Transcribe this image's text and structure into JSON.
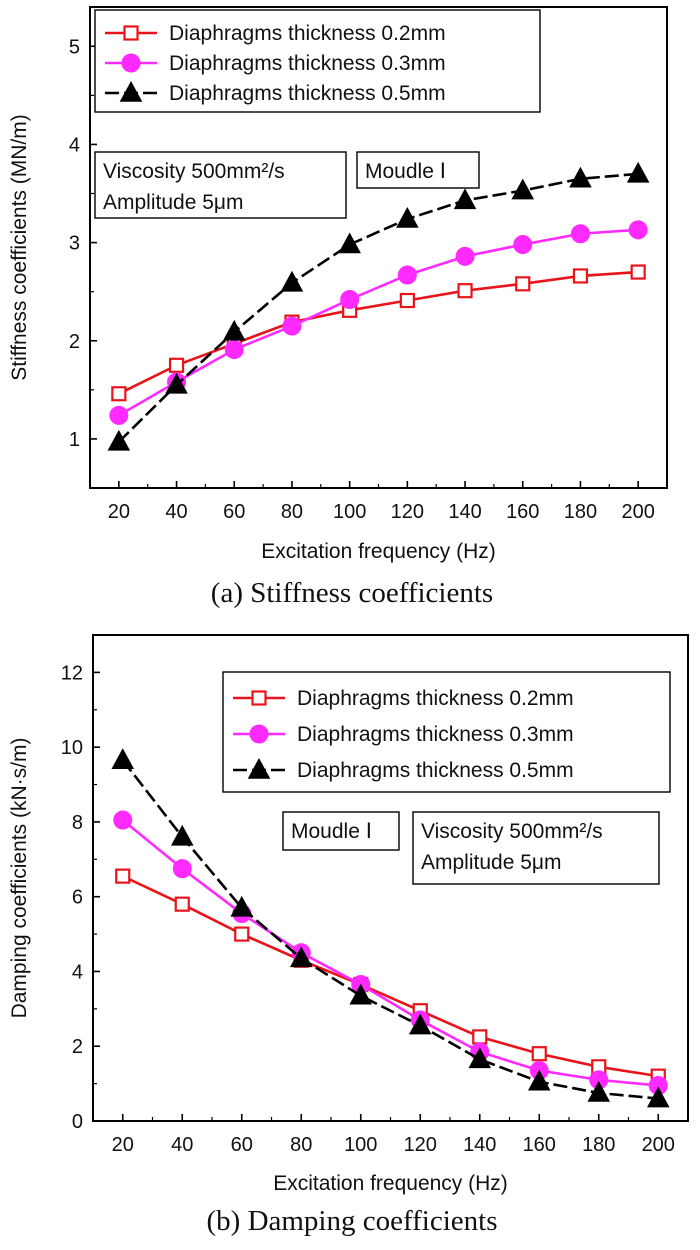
{
  "chart_data": [
    {
      "type": "line",
      "caption": "(a) Stiffness coefficients",
      "xlabel": "Excitation frequency (Hz)",
      "ylabel": "Stiffness coefficients (MN/m)",
      "xlim": [
        10,
        210
      ],
      "ylim": [
        0.5,
        5.4
      ],
      "xticks": [
        20,
        40,
        60,
        80,
        100,
        120,
        140,
        160,
        180,
        200
      ],
      "yticks": [
        1,
        2,
        3,
        4,
        5
      ],
      "grid": false,
      "legend_position": "top-left",
      "x": [
        20,
        40,
        60,
        80,
        100,
        120,
        140,
        160,
        180,
        200
      ],
      "series": [
        {
          "name": "Diaphragms thickness 0.2mm",
          "color": "#e8141b",
          "marker": "square-open",
          "dash": "solid",
          "values": [
            1.46,
            1.75,
            1.97,
            2.19,
            2.31,
            2.41,
            2.51,
            2.58,
            2.66,
            2.7
          ]
        },
        {
          "name": "Diaphragms thickness 0.3mm",
          "color": "#ff2aff",
          "marker": "circle",
          "dash": "solid",
          "values": [
            1.24,
            1.58,
            1.91,
            2.15,
            2.42,
            2.67,
            2.86,
            2.98,
            3.09,
            3.13
          ]
        },
        {
          "name": "Diaphragms thickness 0.5mm",
          "color": "#000000",
          "marker": "triangle",
          "dash": "dashed",
          "values": [
            0.97,
            1.55,
            2.09,
            2.59,
            2.98,
            3.24,
            3.43,
            3.53,
            3.65,
            3.7
          ]
        }
      ],
      "annotations": [
        {
          "lines": [
            "Viscosity 500mm²/s",
            "Amplitude 5μm"
          ]
        },
        {
          "lines": [
            "Moudle Ⅰ"
          ]
        }
      ]
    },
    {
      "type": "line",
      "caption": "(b) Damping coefficients",
      "xlabel": "Excitation frequency (Hz)",
      "ylabel": "Damping coefficients (kN·s/m)",
      "xlim": [
        10,
        210
      ],
      "ylim": [
        0,
        13
      ],
      "xticks": [
        20,
        40,
        60,
        80,
        100,
        120,
        140,
        160,
        180,
        200
      ],
      "yticks": [
        0,
        2,
        4,
        6,
        8,
        10,
        12
      ],
      "grid": false,
      "legend_position": "top-right",
      "x": [
        20,
        40,
        60,
        80,
        100,
        120,
        140,
        160,
        180,
        200
      ],
      "series": [
        {
          "name": "Diaphragms thickness 0.2mm",
          "color": "#e8141b",
          "marker": "square-open",
          "dash": "solid",
          "values": [
            6.55,
            5.8,
            5.0,
            4.3,
            3.65,
            2.95,
            2.25,
            1.8,
            1.45,
            1.2
          ]
        },
        {
          "name": "Diaphragms thickness 0.3mm",
          "color": "#ff2aff",
          "marker": "circle",
          "dash": "solid",
          "values": [
            8.05,
            6.75,
            5.55,
            4.5,
            3.65,
            2.7,
            1.85,
            1.35,
            1.1,
            0.95
          ]
        },
        {
          "name": "Diaphragms thickness 0.5mm",
          "color": "#000000",
          "marker": "triangle",
          "dash": "dashed",
          "values": [
            9.65,
            7.6,
            5.7,
            4.35,
            3.35,
            2.55,
            1.65,
            1.05,
            0.75,
            0.6
          ]
        }
      ],
      "annotations": [
        {
          "lines": [
            "Moudle Ⅰ"
          ]
        },
        {
          "lines": [
            "Viscosity 500mm²/s",
            "Amplitude 5μm"
          ]
        }
      ]
    }
  ]
}
